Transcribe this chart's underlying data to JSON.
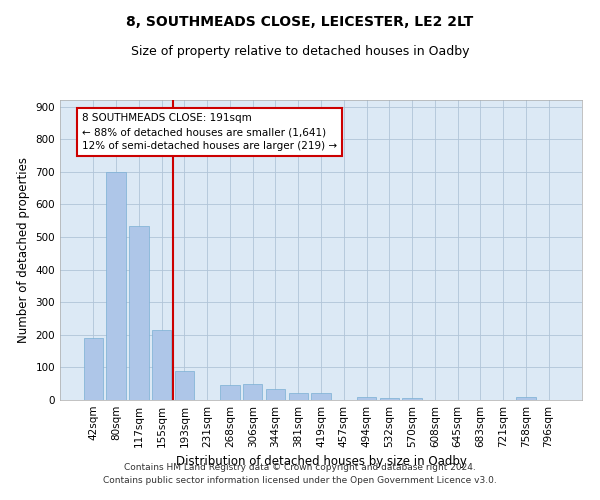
{
  "title": "8, SOUTHMEADS CLOSE, LEICESTER, LE2 2LT",
  "subtitle": "Size of property relative to detached houses in Oadby",
  "xlabel": "Distribution of detached houses by size in Oadby",
  "ylabel": "Number of detached properties",
  "categories": [
    "42sqm",
    "80sqm",
    "117sqm",
    "155sqm",
    "193sqm",
    "231sqm",
    "268sqm",
    "306sqm",
    "344sqm",
    "381sqm",
    "419sqm",
    "457sqm",
    "494sqm",
    "532sqm",
    "570sqm",
    "608sqm",
    "645sqm",
    "683sqm",
    "721sqm",
    "758sqm",
    "796sqm"
  ],
  "values": [
    190,
    700,
    535,
    215,
    90,
    0,
    45,
    50,
    35,
    20,
    20,
    0,
    10,
    5,
    5,
    0,
    0,
    0,
    0,
    10,
    0
  ],
  "bar_color": "#aec6e8",
  "bar_edge_color": "#7aafd4",
  "vline_color": "#cc0000",
  "vline_x": 3.5,
  "annotation_text": "8 SOUTHMEADS CLOSE: 191sqm\n← 88% of detached houses are smaller (1,641)\n12% of semi-detached houses are larger (219) →",
  "annotation_box_color": "#ffffff",
  "annotation_box_edge": "#cc0000",
  "ylim": [
    0,
    920
  ],
  "yticks": [
    0,
    100,
    200,
    300,
    400,
    500,
    600,
    700,
    800,
    900
  ],
  "grid_color": "#b0c4d8",
  "background_color": "#dce9f5",
  "footer": "Contains HM Land Registry data © Crown copyright and database right 2024.\nContains public sector information licensed under the Open Government Licence v3.0.",
  "title_fontsize": 10,
  "subtitle_fontsize": 9,
  "xlabel_fontsize": 8.5,
  "ylabel_fontsize": 8.5,
  "tick_fontsize": 7.5,
  "footer_fontsize": 6.5,
  "annot_fontsize": 7.5
}
